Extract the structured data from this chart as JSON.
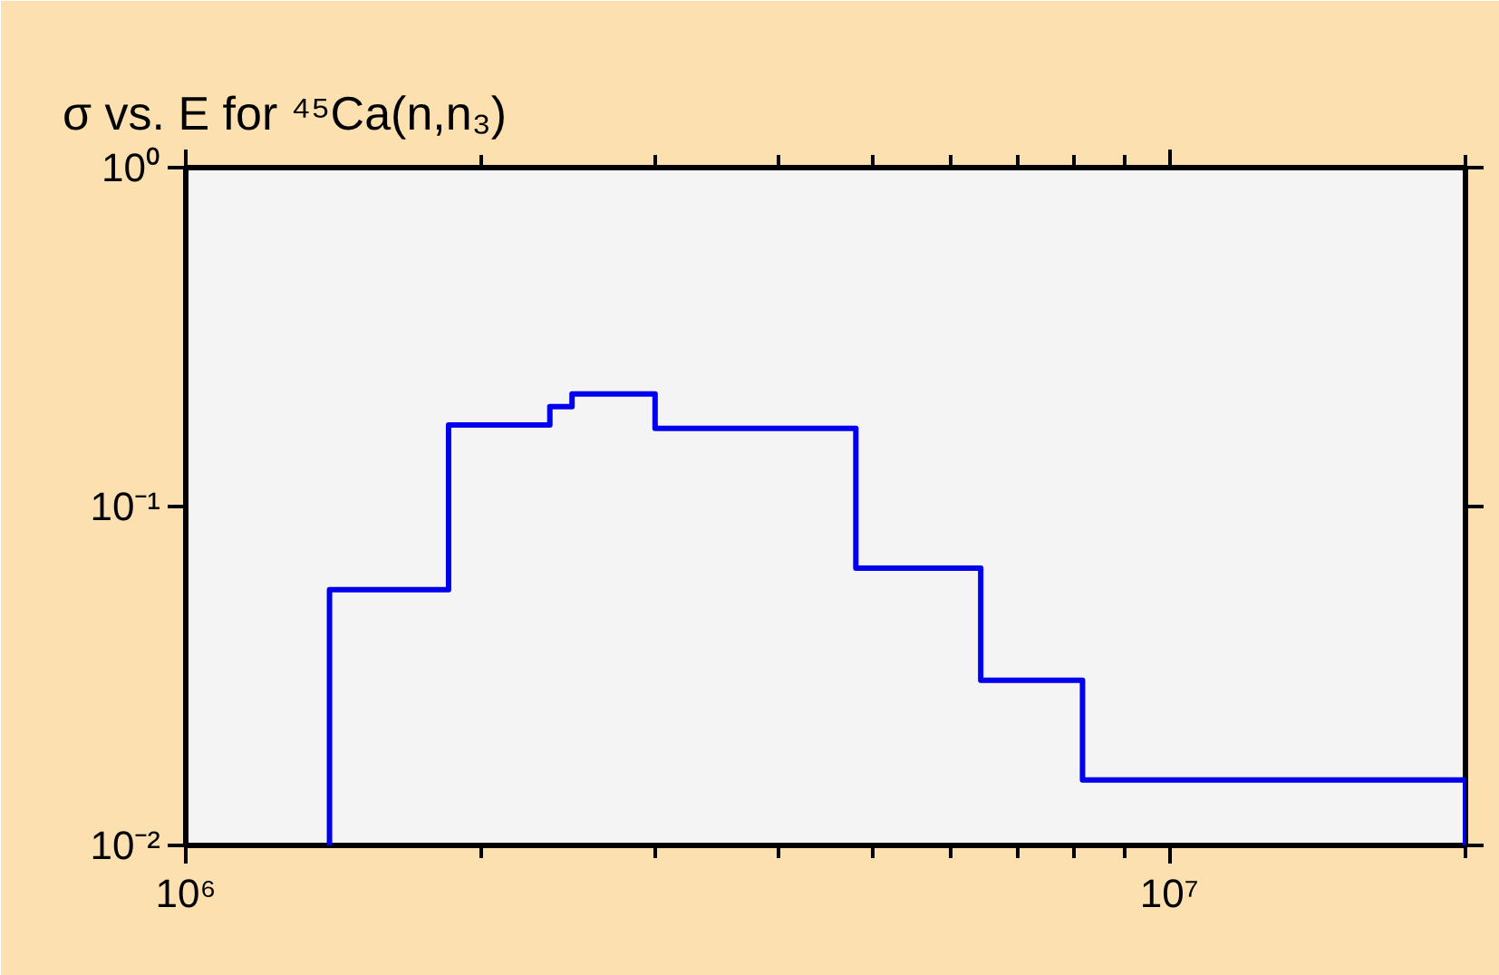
{
  "chart_data": {
    "type": "step",
    "title": "σ vs. E for ⁴⁵Ca(n,n₃)",
    "log": "xy",
    "grid": false,
    "xlim": [
      1000000,
      20000000
    ],
    "ylim": [
      0.01,
      1
    ],
    "xticks": [
      {
        "value": 1000000,
        "label": "10⁶"
      },
      {
        "value": 2000000,
        "label": null
      },
      {
        "value": 3000000,
        "label": null
      },
      {
        "value": 4000000,
        "label": null
      },
      {
        "value": 5000000,
        "label": null
      },
      {
        "value": 6000000,
        "label": null
      },
      {
        "value": 7000000,
        "label": null
      },
      {
        "value": 8000000,
        "label": null
      },
      {
        "value": 9000000,
        "label": null
      },
      {
        "value": 10000000,
        "label": "10⁷"
      },
      {
        "value": 20000000,
        "label": null
      }
    ],
    "yticks": [
      {
        "value": 0.01,
        "label": "10⁻²"
      },
      {
        "value": 0.1,
        "label": "10⁻¹"
      },
      {
        "value": 1,
        "label": "10⁰"
      }
    ],
    "series": [
      {
        "color": "#0000ee",
        "x": [
          1400000,
          1400000,
          1850000,
          2345000,
          2470000,
          3000000,
          4800000,
          6430000,
          8160000,
          20000000,
          20000000
        ],
        "values": [
          0.01,
          0.0568,
          0.174,
          0.197,
          0.215,
          0.17,
          0.0658,
          0.0307,
          0.0156,
          0.0156,
          0.01
        ]
      }
    ]
  }
}
